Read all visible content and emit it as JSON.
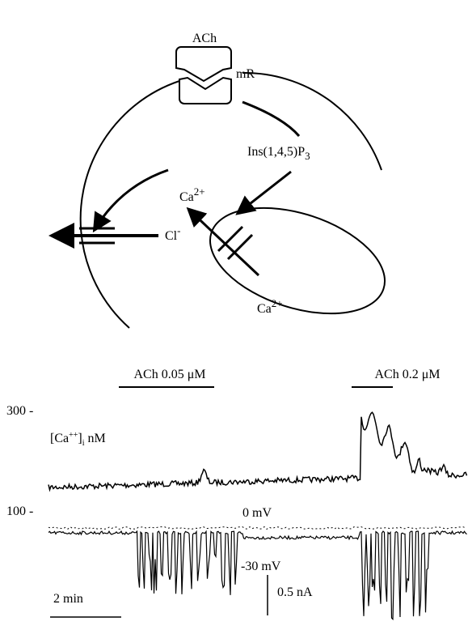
{
  "diagram": {
    "ligand": "ACh",
    "receptor": "mR",
    "messenger": {
      "text": "Ins(1,4,5)P",
      "sub": "3"
    },
    "calcium_released": {
      "text": "Ca",
      "sup": "2+"
    },
    "calcium_stored": {
      "text": "Ca",
      "sup": "2+"
    },
    "chloride": {
      "text": "Cl",
      "sup": "-"
    }
  },
  "traces": {
    "applications": [
      "ACh  0.05 μM",
      "ACh  0.2 μM"
    ],
    "axis_labels": [
      "300 -",
      "100 -"
    ],
    "calcium_label": {
      "open": "[Ca",
      "sup": "++",
      "close": "]",
      "sub": "i",
      "unit": "nM"
    },
    "voltage_labels": [
      "0 mV",
      "-30 mV"
    ],
    "current_scale": "0.5 nA",
    "time_scale": "2 min"
  }
}
